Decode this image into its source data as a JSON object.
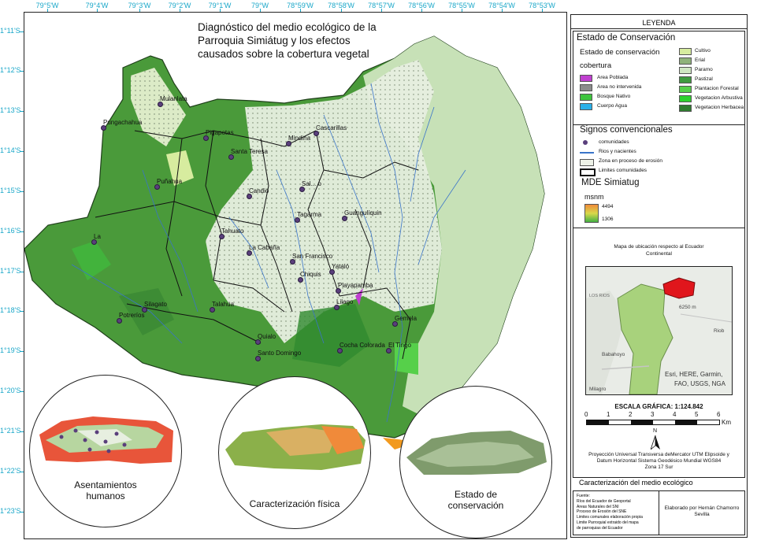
{
  "map": {
    "title_lines": [
      "Diagnóstico del medio ecológico de la",
      "Parroquia Simiátug y los efectos",
      "causados sobre la cobertura vegetal"
    ],
    "lon_ticks": [
      "79°5'W",
      "79°4'W",
      "79°3'W",
      "79°2'W",
      "79°1'W",
      "79°W",
      "78°59'W",
      "78°58'W",
      "78°57'W",
      "78°56'W",
      "78°55'W",
      "78°54'W",
      "78°53'W"
    ],
    "lat_ticks": [
      "1°11'S",
      "1°12'S",
      "1°13'S",
      "1°14'S",
      "1°15'S",
      "1°16'S",
      "1°17'S",
      "1°18'S",
      "1°19'S",
      "1°20'S",
      "1°21'S",
      "1°22'S",
      "1°23'S"
    ],
    "places": [
      {
        "name": "Mulanlata"
      },
      {
        "name": "Pungachahua"
      },
      {
        "name": "Pigapotas"
      },
      {
        "name": "Santa Teresa"
      },
      {
        "name": "Mindina"
      },
      {
        "name": "Cascarillas"
      },
      {
        "name": "Puñahua"
      },
      {
        "name": "Candio"
      },
      {
        "name": "Sal... o"
      },
      {
        "name": "Tagarma"
      },
      {
        "name": "Guangulíquin"
      },
      {
        "name": "Tahuato"
      },
      {
        "name": "La Cabaña"
      },
      {
        "name": "San Francisco"
      },
      {
        "name": "Yataló"
      },
      {
        "name": "Chiquis"
      },
      {
        "name": "Playapamba"
      },
      {
        "name": "Lilago"
      },
      {
        "name": "Talahua"
      },
      {
        "name": "Silagato"
      },
      {
        "name": "Potreríos"
      },
      {
        "name": "Gemela"
      },
      {
        "name": "Quialo"
      },
      {
        "name": "Santo Domingo"
      },
      {
        "name": "Cocha Colorada"
      },
      {
        "name": "El Tingo"
      },
      {
        "name": "La"
      }
    ],
    "insets": [
      {
        "label_lines": [
          "Asentamientos",
          "humanos"
        ]
      },
      {
        "label_lines": [
          "Caracterización física"
        ]
      },
      {
        "label_lines": [
          "Estado de",
          "conservación"
        ]
      }
    ]
  },
  "legend": {
    "title": "LEYENDA",
    "conservation": {
      "heading": "Estado de Conservación",
      "sub1": "Estado de conservación",
      "sub2": "cobertura",
      "items_left": [
        {
          "label": "Area Poblada",
          "color": "#c040d0"
        },
        {
          "label": "Area no intervenida",
          "color": "#8c8c8c"
        },
        {
          "label": "Bosque Nativo",
          "color": "#3ec43e"
        },
        {
          "label": "Cuerpo Agua",
          "color": "#2ab0e8"
        }
      ],
      "items_right": [
        {
          "label": "Cultivo",
          "color": "#d7ec9f"
        },
        {
          "label": "Erial",
          "color": "#8fb27a"
        },
        {
          "label": "Paramo",
          "color": "#cfe6c2"
        },
        {
          "label": "Pastizal",
          "color": "#3f9b3f"
        },
        {
          "label": "Plantacion Forestal",
          "color": "#56d04a"
        },
        {
          "label": "Vegetacion Arbustiva",
          "color": "#2ed12e"
        },
        {
          "label": "Vegetacion Herbacea",
          "color": "#2f7d2f"
        }
      ]
    },
    "signs": {
      "heading": "Signos convencionales",
      "items": [
        "comunidades",
        "Rios y nacientes",
        "Zona en proceso de erosión",
        "Limites comunidades"
      ]
    },
    "dem": {
      "heading": "MDE Simiatug",
      "unit": "msnm",
      "max": "4494",
      "min": "1306"
    },
    "location": {
      "title_lines": [
        "Mapa de ubicación respecto al Ecuador",
        "Continental"
      ],
      "labels": [
        "Esri, HERE, Garmin,",
        "FAO, USGS, NGA"
      ],
      "town_labels": [
        "Babahoyo",
        "Milagro",
        "Riob",
        "6250 m",
        "LOS RIOS"
      ]
    },
    "scale": {
      "title": "ESCALA GRÁFICA: 1:124.842",
      "ticks": [
        "0",
        "1",
        "2",
        "3",
        "4",
        "5",
        "6"
      ],
      "unit": "Km",
      "north": "N"
    },
    "projection_lines": [
      "Proyección Universal Transversa deMercator UTM Elipsoide y",
      "Datum Horizontal Sistema Geodésico Mundial WGS84",
      "Zona 17 Sur"
    ],
    "section_title": "Caracterización del medio ecológico",
    "sources_lines": [
      "Fuente:",
      "Ríos del Ecuador de Geoportal",
      "Areas Naturales del SNI",
      "Proceso de Erosión del SNE",
      "Limites comunales elaboración propia",
      "Limite Parroquial extraido del mapa",
      "de parroquias del Ecuador"
    ],
    "author_lines": [
      "Elaborado por Hernán Chamorro",
      "Sevilla"
    ]
  }
}
